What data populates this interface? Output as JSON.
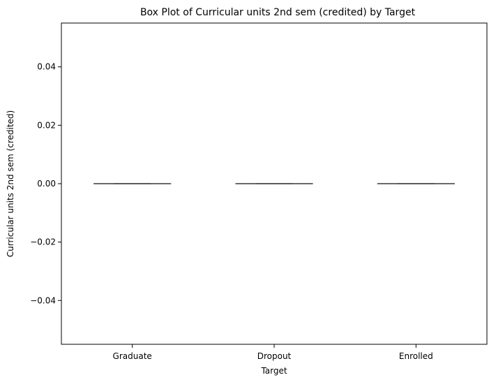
{
  "chart_data": {
    "type": "box",
    "title": "Box Plot of Curricular units 2nd sem (credited) by Target",
    "xlabel": "Target",
    "ylabel": "Curricular units 2nd sem (credited)",
    "categories": [
      "Graduate",
      "Dropout",
      "Enrolled"
    ],
    "boxes": [
      {
        "category": "Graduate",
        "min": 0,
        "q1": 0,
        "median": 0,
        "q3": 0,
        "max": 0
      },
      {
        "category": "Dropout",
        "min": 0,
        "q1": 0,
        "median": 0,
        "q3": 0,
        "max": 0
      },
      {
        "category": "Enrolled",
        "min": 0,
        "q1": 0,
        "median": 0,
        "q3": 0,
        "max": 0
      }
    ],
    "ylim": [
      -0.055,
      0.055
    ],
    "yticks": [
      -0.04,
      -0.02,
      0.0,
      0.02,
      0.04
    ],
    "ytick_labels": [
      "−0.04",
      "−0.02",
      "0.00",
      "0.02",
      "0.04"
    ],
    "grid": false,
    "colors": {
      "box_line": "#555555",
      "axis": "#000000",
      "background": "#ffffff"
    }
  }
}
